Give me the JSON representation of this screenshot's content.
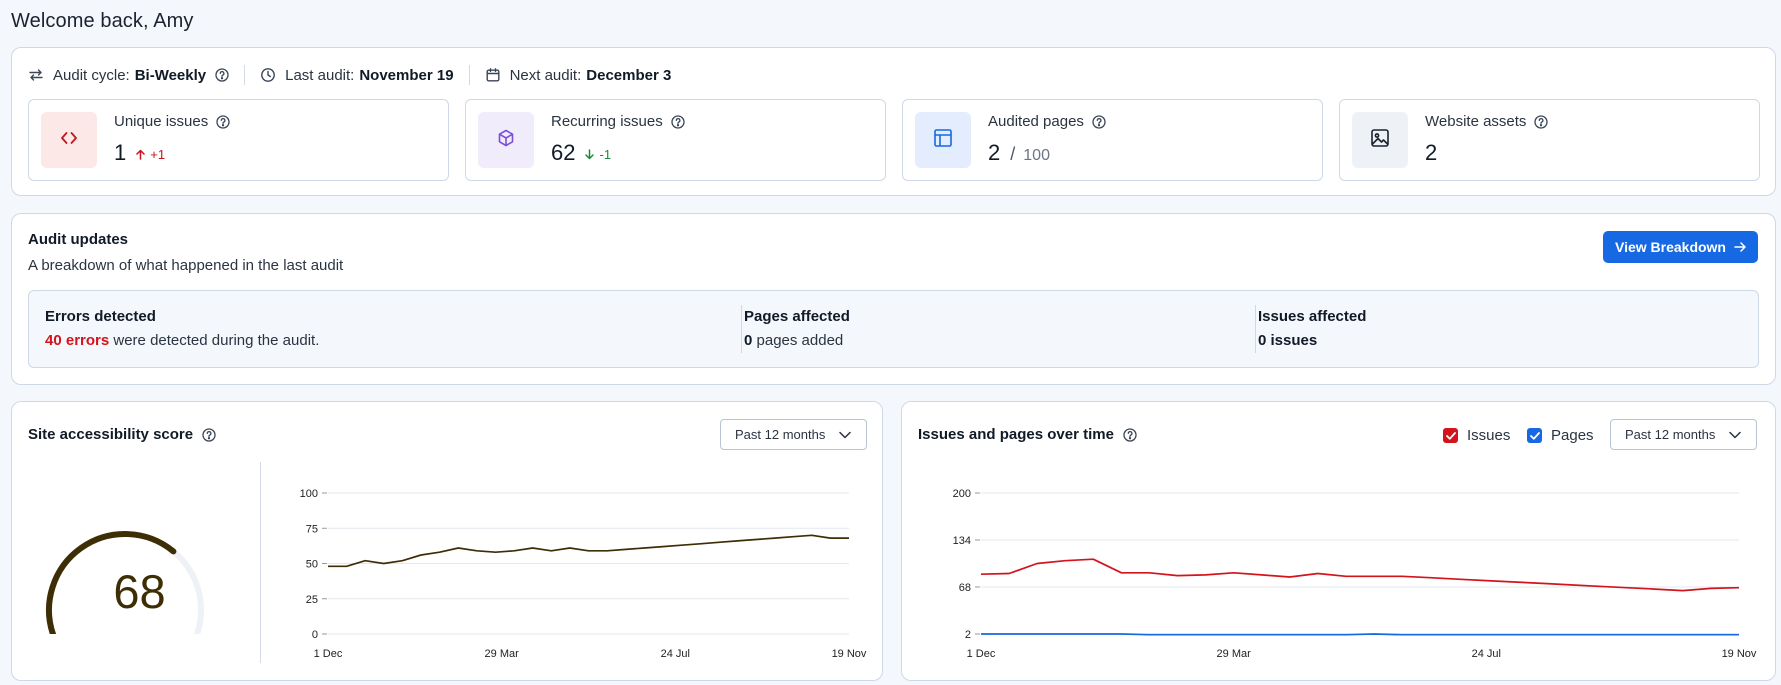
{
  "header": {
    "welcome": "Welcome back, Amy"
  },
  "audit_meta": {
    "cycle_label": "Audit cycle:",
    "cycle_value": "Bi-Weekly",
    "last_label": "Last audit:",
    "last_value": "November 19",
    "next_label": "Next audit:",
    "next_value": "December 3"
  },
  "stats": [
    {
      "title": "Unique issues",
      "value": "1",
      "delta": "+1",
      "direction": "up",
      "icon": "code-icon",
      "bg": "#fde8e8",
      "fg": "#c4141d"
    },
    {
      "title": "Recurring issues",
      "value": "62",
      "delta": "-1",
      "direction": "down",
      "icon": "cube-icon",
      "bg": "#f1ecfc",
      "fg": "#7b4fd6"
    },
    {
      "title": "Audited pages",
      "value": "2",
      "sep": "/",
      "total": "100",
      "icon": "layout-icon",
      "bg": "#e3edfd",
      "fg": "#1668e3"
    },
    {
      "title": "Website assets",
      "value": "2",
      "icon": "image-icon",
      "bg": "#eef1f5",
      "fg": "#1b2330"
    }
  ],
  "updates": {
    "title": "Audit updates",
    "subtitle": "A breakdown of what happened in the last audit",
    "button": "View Breakdown",
    "errors": {
      "title": "Errors detected",
      "count": "40 errors",
      "text": " were detected during the audit."
    },
    "pages": {
      "title": "Pages affected",
      "count": "0",
      "text": " pages added"
    },
    "issues": {
      "title": "Issues affected",
      "count": "0 issues"
    }
  },
  "score_panel": {
    "title": "Site accessibility score",
    "select": "Past 12 months",
    "score": "68",
    "score_fraction": 0.68,
    "gauge_color": "#3e2e06",
    "track_color": "#eef2f7"
  },
  "issues_panel": {
    "title": "Issues and pages over time",
    "select": "Past 12 months",
    "issues_label": "Issues",
    "pages_label": "Pages",
    "issues_color": "#d3141c",
    "pages_color": "#1668e3"
  },
  "chart_data": [
    {
      "type": "line",
      "title": "Site accessibility score",
      "x_ticks": [
        "1 Dec",
        "29 Mar",
        "24 Jul",
        "19 Nov"
      ],
      "y_ticks": [
        0,
        25,
        50,
        75,
        100
      ],
      "ylim": [
        0,
        100
      ],
      "grid": true,
      "series": [
        {
          "color": "#3e2e06",
          "values": [
            48,
            48,
            52,
            50,
            52,
            56,
            58,
            61,
            59,
            58,
            59,
            61,
            59,
            61,
            59,
            59,
            60,
            61,
            62,
            63,
            64,
            65,
            66,
            67,
            68,
            69,
            70,
            68,
            68
          ]
        }
      ]
    },
    {
      "type": "line",
      "title": "Issues and pages over time",
      "x_ticks": [
        "1 Dec",
        "29 Mar",
        "24 Jul",
        "19 Nov"
      ],
      "y_ticks": [
        2,
        68,
        134,
        200
      ],
      "ylim": [
        2,
        200
      ],
      "grid": true,
      "series": [
        {
          "name": "Issues",
          "color": "#d3141c",
          "values": [
            86,
            87,
            101,
            105,
            107,
            88,
            88,
            84,
            85,
            88,
            85,
            82,
            87,
            83,
            83,
            83,
            81,
            79,
            77,
            75,
            73,
            71,
            69,
            67,
            65,
            63,
            66,
            67
          ]
        },
        {
          "name": "Pages",
          "color": "#1668e3",
          "values": [
            2,
            2,
            2,
            2,
            2,
            2,
            1,
            1,
            1,
            1,
            1,
            1,
            1,
            1,
            2,
            1,
            1,
            1,
            1,
            1,
            1,
            1,
            1,
            1,
            1,
            1,
            1,
            1
          ]
        }
      ]
    }
  ]
}
